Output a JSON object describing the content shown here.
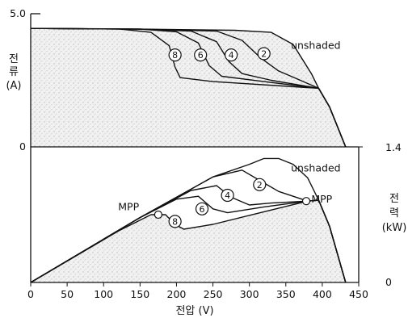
{
  "chart_data": [
    {
      "type": "line",
      "panel": "current",
      "xlabel": "전압 (V)",
      "ylabel": "전류 (A)",
      "xlim": [
        0,
        450
      ],
      "ylim": [
        0,
        5.0
      ],
      "x_ticks": [
        "0",
        "50",
        "100",
        "150",
        "200",
        "250",
        "300",
        "350",
        "400",
        "450"
      ],
      "y_ticks": [
        "0",
        "5.0"
      ],
      "fill_under": "unshaded",
      "series": [
        {
          "name": "unshaded",
          "points": [
            [
              0,
              4.45
            ],
            [
              150,
              4.42
            ],
            [
              280,
              4.38
            ],
            [
              330,
              4.3
            ],
            [
              360,
              3.85
            ],
            [
              385,
              2.75
            ],
            [
              395,
              2.2
            ],
            [
              410,
              1.5
            ],
            [
              432,
              0
            ]
          ]
        },
        {
          "name": "2",
          "points": [
            [
              0,
              4.45
            ],
            [
              150,
              4.42
            ],
            [
              255,
              4.35
            ],
            [
              290,
              4.0
            ],
            [
              315,
              3.35
            ],
            [
              340,
              2.85
            ],
            [
              370,
              2.5
            ],
            [
              395,
              2.2
            ],
            [
              410,
              1.5
            ],
            [
              432,
              0
            ]
          ]
        },
        {
          "name": "4",
          "points": [
            [
              0,
              4.45
            ],
            [
              150,
              4.42
            ],
            [
              220,
              4.35
            ],
            [
              255,
              3.95
            ],
            [
              272,
              3.2
            ],
            [
              290,
              2.75
            ],
            [
              330,
              2.5
            ],
            [
              395,
              2.2
            ],
            [
              410,
              1.5
            ],
            [
              432,
              0
            ]
          ]
        },
        {
          "name": "6",
          "points": [
            [
              0,
              4.45
            ],
            [
              150,
              4.42
            ],
            [
              200,
              4.32
            ],
            [
              230,
              3.9
            ],
            [
              245,
              3.05
            ],
            [
              262,
              2.65
            ],
            [
              320,
              2.45
            ],
            [
              395,
              2.2
            ],
            [
              410,
              1.5
            ],
            [
              432,
              0
            ]
          ]
        },
        {
          "name": "8",
          "points": [
            [
              0,
              4.45
            ],
            [
              120,
              4.43
            ],
            [
              165,
              4.3
            ],
            [
              190,
              3.8
            ],
            [
              198,
              3.0
            ],
            [
              205,
              2.6
            ],
            [
              250,
              2.45
            ],
            [
              395,
              2.2
            ],
            [
              410,
              1.5
            ],
            [
              432,
              0
            ]
          ]
        }
      ],
      "annotations": [
        {
          "text": "unshaded"
        },
        {
          "text": "2"
        },
        {
          "text": "4"
        },
        {
          "text": "6"
        },
        {
          "text": "8"
        }
      ]
    },
    {
      "type": "line",
      "panel": "power",
      "xlabel": "전압 (V)",
      "ylabel": "전력 (kW)",
      "xlim": [
        0,
        450
      ],
      "ylim": [
        0,
        1.4
      ],
      "y_ticks": [
        "0",
        "1.4"
      ],
      "fill_under": "8",
      "series": [
        {
          "name": "unshaded",
          "points": [
            [
              0,
              0
            ],
            [
              150,
              0.67
            ],
            [
              250,
              1.09
            ],
            [
              300,
              1.22
            ],
            [
              320,
              1.28
            ],
            [
              340,
              1.28
            ],
            [
              360,
              1.22
            ],
            [
              380,
              1.08
            ],
            [
              395,
              0.85
            ],
            [
              410,
              0.58
            ],
            [
              432,
              0
            ]
          ]
        },
        {
          "name": "2",
          "points": [
            [
              0,
              0
            ],
            [
              150,
              0.67
            ],
            [
              250,
              1.09
            ],
            [
              290,
              1.16
            ],
            [
              315,
              1.05
            ],
            [
              340,
              0.94
            ],
            [
              360,
              0.89
            ],
            [
              380,
              0.84
            ],
            [
              395,
              0.85
            ],
            [
              410,
              0.58
            ],
            [
              432,
              0
            ]
          ]
        },
        {
          "name": "4",
          "points": [
            [
              0,
              0
            ],
            [
              150,
              0.67
            ],
            [
              220,
              0.95
            ],
            [
              255,
              1.0
            ],
            [
              275,
              0.88
            ],
            [
              300,
              0.8
            ],
            [
              330,
              0.82
            ],
            [
              380,
              0.84
            ],
            [
              395,
              0.85
            ],
            [
              410,
              0.58
            ],
            [
              432,
              0
            ]
          ]
        },
        {
          "name": "6",
          "points": [
            [
              0,
              0
            ],
            [
              150,
              0.67
            ],
            [
              200,
              0.86
            ],
            [
              230,
              0.89
            ],
            [
              250,
              0.76
            ],
            [
              270,
              0.72
            ],
            [
              320,
              0.78
            ],
            [
              380,
              0.84
            ],
            [
              395,
              0.85
            ],
            [
              410,
              0.58
            ],
            [
              432,
              0
            ]
          ]
        },
        {
          "name": "8",
          "points": [
            [
              0,
              0
            ],
            [
              120,
              0.53
            ],
            [
              165,
              0.7
            ],
            [
              185,
              0.7
            ],
            [
              198,
              0.6
            ],
            [
              210,
              0.55
            ],
            [
              250,
              0.6
            ],
            [
              320,
              0.73
            ],
            [
              380,
              0.84
            ],
            [
              395,
              0.85
            ],
            [
              410,
              0.58
            ],
            [
              432,
              0
            ]
          ]
        }
      ],
      "annotations": [
        {
          "text": "unshaded"
        },
        {
          "text": "2"
        },
        {
          "text": "4"
        },
        {
          "text": "6"
        },
        {
          "text": "8"
        },
        {
          "text": "MPP"
        },
        {
          "text": "MPP"
        }
      ],
      "mpp_points": [
        [
          175,
          0.7
        ],
        [
          378,
          0.84
        ]
      ]
    }
  ]
}
